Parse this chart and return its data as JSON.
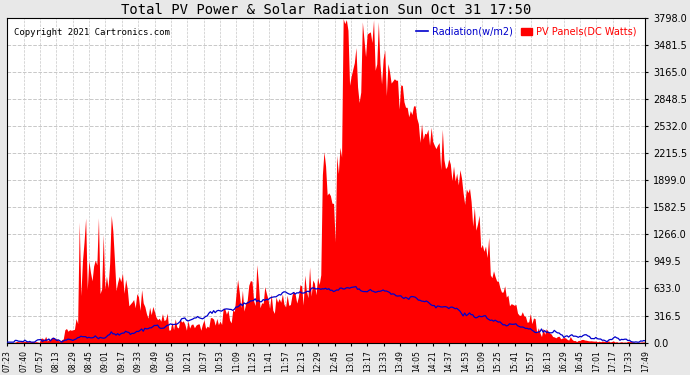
{
  "title": "Total PV Power & Solar Radiation Sun Oct 31 17:50",
  "copyright": "Copyright 2021 Cartronics.com",
  "legend_radiation": "Radiation(w/m2)",
  "legend_pv": "PV Panels(DC Watts)",
  "bg_color": "#e8e8e8",
  "plot_bg_color": "#ffffff",
  "grid_color": "#c8c8c8",
  "radiation_color": "#0000cc",
  "pv_color": "#ff0000",
  "ymax": 3798.0,
  "yticks": [
    0.0,
    316.5,
    633.0,
    949.5,
    1266.0,
    1582.5,
    1899.0,
    2215.5,
    2532.0,
    2848.5,
    3165.0,
    3481.5,
    3798.0
  ],
  "x_labels": [
    "07:23",
    "07:40",
    "07:57",
    "08:13",
    "08:29",
    "08:45",
    "09:01",
    "09:17",
    "09:33",
    "09:49",
    "10:05",
    "10:21",
    "10:37",
    "10:53",
    "11:09",
    "11:25",
    "11:41",
    "11:57",
    "12:13",
    "12:29",
    "12:45",
    "13:01",
    "13:17",
    "13:33",
    "13:49",
    "14:05",
    "14:21",
    "14:37",
    "14:53",
    "15:09",
    "15:25",
    "15:41",
    "15:57",
    "16:13",
    "16:29",
    "16:45",
    "17:01",
    "17:17",
    "17:33",
    "17:49"
  ]
}
